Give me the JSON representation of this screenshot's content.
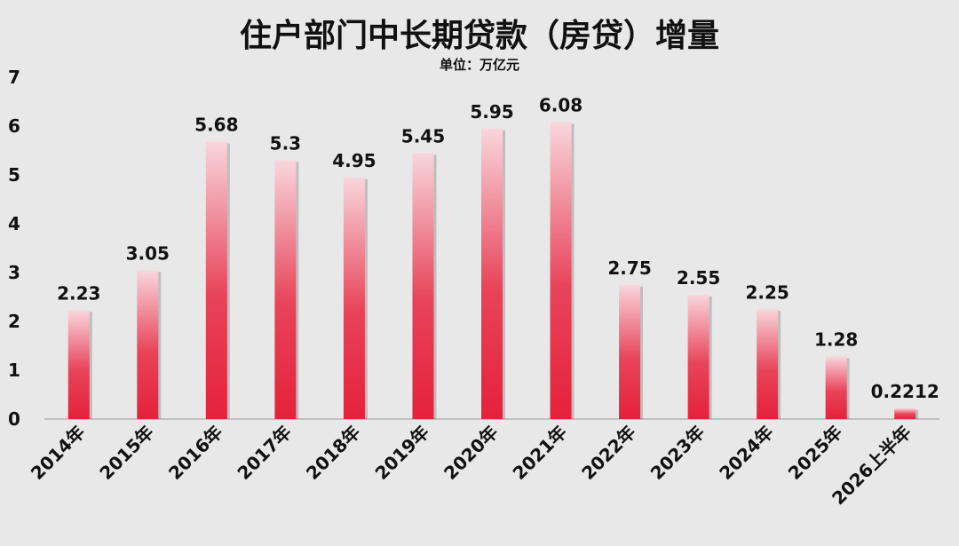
{
  "chart_data": {
    "type": "bar",
    "title": "住户部门中长期贷款（房贷）增量",
    "subtitle": "单位：万亿元",
    "categories": [
      "2014年",
      "2015年",
      "2016年",
      "2017年",
      "2018年",
      "2019年",
      "2020年",
      "2021年",
      "2022年",
      "2023年",
      "2024年",
      "2025年",
      "2026上半年"
    ],
    "values": [
      2.23,
      3.05,
      5.68,
      5.3,
      4.95,
      5.45,
      5.95,
      6.08,
      2.75,
      2.55,
      2.25,
      1.28,
      0.2212
    ],
    "value_labels": [
      "2.23",
      "3.05",
      "5.68",
      "5.3",
      "4.95",
      "5.45",
      "5.95",
      "6.08",
      "2.75",
      "2.55",
      "2.25",
      "1.28",
      "0.2212"
    ],
    "yticks": [
      "0",
      "1",
      "2",
      "3",
      "4",
      "5",
      "6",
      "7"
    ],
    "ylim": [
      0,
      7
    ],
    "grid": false,
    "colors": {
      "bar_top": "#f9d6dc",
      "bar_bottom": "#e5213b",
      "background": "#e8e8e8"
    }
  }
}
